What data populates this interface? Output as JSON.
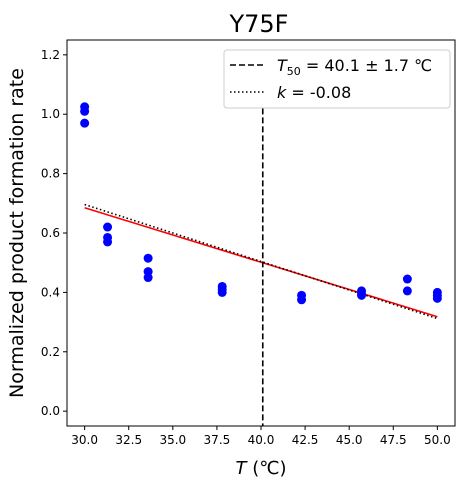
{
  "chart_data": {
    "type": "scatter",
    "title": "Y75F",
    "xlabel_main": "T",
    "xlabel_unit": " (℃)",
    "ylabel": "Normalized product formation rate",
    "xlim": [
      29.0,
      51.0
    ],
    "ylim": [
      -0.05,
      1.25
    ],
    "x_ticks": [
      30.0,
      32.5,
      35.0,
      37.5,
      40.0,
      42.5,
      45.0,
      47.5,
      50.0
    ],
    "x_tick_labels": [
      "30.0",
      "32.5",
      "35.0",
      "37.5",
      "40.0",
      "42.5",
      "45.0",
      "47.5",
      "50.0"
    ],
    "y_ticks": [
      0.0,
      0.2,
      0.4,
      0.6,
      0.8,
      1.0,
      1.2
    ],
    "y_tick_labels": [
      "0.0",
      "0.2",
      "0.4",
      "0.6",
      "0.8",
      "1.0",
      "1.2"
    ],
    "grid": false,
    "legend_placement": "top-right",
    "points": {
      "color": "#0000ff",
      "x": [
        30.0,
        30.0,
        30.0,
        31.3,
        31.3,
        31.3,
        33.6,
        33.6,
        33.6,
        37.8,
        37.8,
        37.8,
        42.3,
        42.3,
        45.7,
        45.7,
        45.7,
        48.3,
        48.3,
        50.0,
        50.0,
        50.0
      ],
      "y": [
        1.025,
        1.01,
        0.97,
        0.62,
        0.585,
        0.57,
        0.515,
        0.47,
        0.45,
        0.42,
        0.41,
        0.4,
        0.39,
        0.375,
        0.405,
        0.395,
        0.39,
        0.445,
        0.405,
        0.4,
        0.39,
        0.38
      ]
    },
    "fit_line": {
      "color": "#ff0000",
      "x": [
        30.0,
        50.0
      ],
      "y": [
        0.685,
        0.318
      ]
    },
    "linear_line": {
      "color": "#000000",
      "style": "dotted",
      "x": [
        30.0,
        50.0
      ],
      "y": [
        0.696,
        0.312
      ]
    },
    "t50_line": {
      "color": "#000000",
      "style": "dashed",
      "x": 40.1
    },
    "legend": [
      {
        "prefix": "T",
        "sub": "50",
        "rest": " = 40.1 ± 1.7 ℃",
        "style": "dashed"
      },
      {
        "prefix": "k",
        "sub": "",
        "rest": " = -0.08",
        "style": "dotted"
      }
    ]
  }
}
